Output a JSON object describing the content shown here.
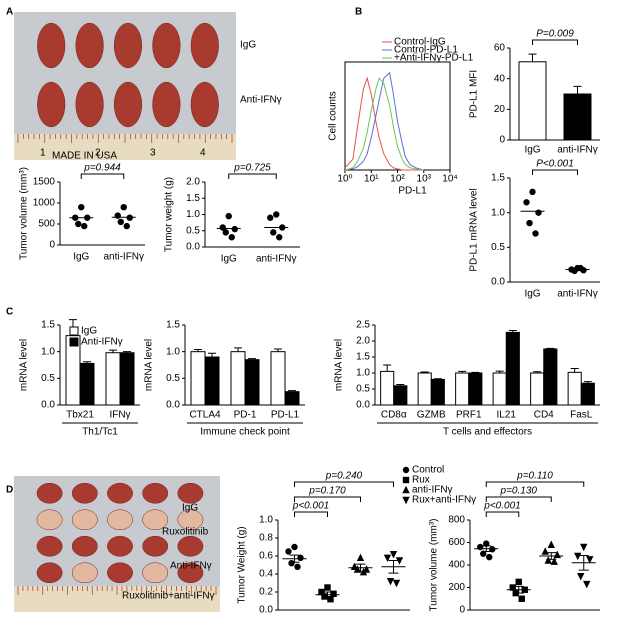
{
  "panel_labels": [
    "A",
    "B",
    "C",
    "D"
  ],
  "photo_a": {
    "labels": [
      "IgG",
      "Anti-IFNγ"
    ],
    "ruler": [
      "1",
      "2",
      "3",
      "4"
    ],
    "ruler_text": "MADE IN USA"
  },
  "photo_d": {
    "labels": [
      "IgG",
      "Ruxolitinib",
      "Anti-IFNγ",
      "Ruxolitinib+anti-IFNγ"
    ]
  },
  "chart_data": [
    {
      "type": "strip",
      "ylabel": "Tumor volume (mm³)",
      "categories": [
        "IgG",
        "anti-IFNγ"
      ],
      "series": [
        {
          "marker": "circle",
          "values": [
            900,
            650,
            650,
            500,
            450
          ],
          "mean": 650
        },
        {
          "marker": "circle",
          "values": [
            900,
            700,
            650,
            550,
            450
          ],
          "mean": 660
        }
      ],
      "ylim": [
        0,
        1500
      ],
      "yticks": [
        0,
        500,
        1000,
        1500
      ],
      "annotations": [
        {
          "text": "p=0.944",
          "to": 1
        }
      ]
    },
    {
      "type": "strip",
      "ylabel": "Tumor weight (g)",
      "categories": [
        "IgG",
        "anti-IFNγ"
      ],
      "series": [
        {
          "marker": "circle",
          "values": [
            0.95,
            0.6,
            0.55,
            0.45,
            0.3
          ],
          "mean": 0.57
        },
        {
          "marker": "circle",
          "values": [
            1.0,
            0.9,
            0.6,
            0.45,
            0.3
          ],
          "mean": 0.6
        }
      ],
      "ylim": [
        0,
        2
      ],
      "yticks": [
        {
          "value": 0,
          "label": "0.0"
        },
        0.5,
        {
          "value": 1,
          "label": "1.0"
        },
        1.5,
        {
          "value": 2,
          "label": "2.0"
        }
      ],
      "annotations": [
        {
          "text": "p=0.725",
          "to": 1
        }
      ]
    },
    {
      "type": "line",
      "xlabel": "PD-L1",
      "ylabel": "Cell counts",
      "log_x": true,
      "x": [
        1,
        2,
        3,
        5,
        7,
        10,
        15,
        20,
        30,
        50,
        70,
        100,
        150,
        200,
        300,
        500,
        1000
      ],
      "xlim": [
        1,
        10000
      ],
      "xticks": [
        {
          "value": 1,
          "label": "10⁰"
        },
        {
          "value": 10,
          "label": "10¹"
        },
        {
          "value": 100,
          "label": "10²"
        },
        {
          "value": 1000,
          "label": "10³"
        },
        {
          "value": 10000,
          "label": "10⁴"
        }
      ],
      "ylim": [
        0,
        100
      ],
      "legend": "top-right",
      "series": [
        {
          "name": "Control-IgG",
          "color": "#e8504a",
          "values": [
            2,
            10,
            40,
            75,
            85,
            70,
            45,
            30,
            15,
            5,
            2,
            1,
            0,
            0,
            0,
            0,
            0
          ]
        },
        {
          "name": "Control-PD-L1",
          "color": "#5a6fd6",
          "values": [
            0,
            1,
            3,
            8,
            15,
            30,
            50,
            65,
            85,
            90,
            70,
            45,
            25,
            12,
            5,
            2,
            0
          ]
        },
        {
          "name": "+Anti-IFNγ-PD-L1",
          "color": "#6cc25a",
          "values": [
            0,
            2,
            8,
            20,
            35,
            55,
            75,
            85,
            80,
            60,
            40,
            22,
            10,
            5,
            2,
            1,
            0
          ]
        }
      ]
    },
    {
      "type": "bar",
      "ylabel": "PD-L1 MFI",
      "categories": [
        "IgG",
        "anti-IFNγ"
      ],
      "values": [
        51,
        30
      ],
      "errors": [
        5,
        5
      ],
      "colors": [
        "#ffffff",
        "#000000"
      ],
      "ylim": [
        0,
        60
      ],
      "yticks": [
        0,
        20,
        40,
        60
      ],
      "annotations": [
        {
          "text": "P=0.009",
          "to": 1
        }
      ]
    },
    {
      "type": "strip",
      "ylabel": "PD-L1 mRNA level",
      "categories": [
        "IgG",
        "anti-IFNγ"
      ],
      "series": [
        {
          "marker": "circle",
          "values": [
            1.3,
            1.15,
            1.0,
            0.85,
            0.7
          ],
          "mean": 1.02
        },
        {
          "marker": "circle",
          "values": [
            0.2,
            0.18,
            0.17,
            0.16,
            0.2
          ],
          "mean": 0.18
        }
      ],
      "ylim": [
        0,
        1.5
      ],
      "yticks": [
        {
          "value": 0,
          "label": "0.0"
        },
        0.5,
        {
          "value": 1,
          "label": "1.0"
        },
        1.5
      ],
      "annotations": [
        {
          "text": "P<0.001",
          "to": 1
        }
      ]
    },
    {
      "type": "bar",
      "ylabel": "mRNA level",
      "categories": [
        "Tbx21",
        "IFNγ"
      ],
      "group_label": "Th1/Tc1",
      "legend": "top-left",
      "series": [
        {
          "name": "IgG",
          "color": "#ffffff",
          "values": [
            1.3,
            0.98
          ],
          "errors": [
            0.3,
            0.05
          ]
        },
        {
          "name": "Anti-IFNγ",
          "color": "#000000",
          "values": [
            0.78,
            0.98
          ],
          "errors": [
            0.03,
            0.02
          ]
        }
      ],
      "ylim": [
        0,
        1.5
      ],
      "yticks": [
        {
          "value": 0,
          "label": "0.0"
        },
        0.5,
        {
          "value": 1,
          "label": "1.0"
        },
        1.5
      ]
    },
    {
      "type": "bar",
      "ylabel": "mRNA level",
      "categories": [
        "CTLA4",
        "PD-1",
        "PD-L1"
      ],
      "group_label": "Immune check point",
      "series": [
        {
          "color": "#ffffff",
          "values": [
            1.0,
            1.0,
            1.0
          ],
          "errors": [
            0.04,
            0.07,
            0.05
          ]
        },
        {
          "color": "#000000",
          "values": [
            0.9,
            0.85,
            0.25
          ],
          "errors": [
            0.07,
            0.02,
            0.02
          ]
        }
      ],
      "ylim": [
        0,
        1.5
      ],
      "yticks": [
        {
          "value": 0,
          "label": "0.0"
        },
        0.5,
        {
          "value": 1,
          "label": "1.0"
        },
        1.5
      ]
    },
    {
      "type": "bar",
      "ylabel": "mRNA level",
      "categories": [
        "CD8α",
        "GZMB",
        "PRF1",
        "IL21",
        "CD4",
        "FasL"
      ],
      "group_label": "T cells and effectors",
      "series": [
        {
          "color": "#ffffff",
          "values": [
            1.05,
            1.0,
            1.0,
            1.0,
            1.0,
            1.02
          ],
          "errors": [
            0.2,
            0.03,
            0.05,
            0.06,
            0.04,
            0.12
          ]
        },
        {
          "color": "#000000",
          "values": [
            0.6,
            0.8,
            1.0,
            2.27,
            1.75,
            0.68
          ],
          "errors": [
            0.04,
            0.02,
            0.02,
            0.06,
            0.02,
            0.05
          ]
        }
      ],
      "ylim": [
        0,
        2.5
      ],
      "yticks": [
        {
          "value": 0,
          "label": "0.0"
        },
        0.5,
        {
          "value": 1,
          "label": "1.0"
        },
        1.5,
        {
          "value": 2,
          "label": "2.0"
        },
        2.5
      ]
    },
    {
      "type": "strip",
      "ylabel": "Tumor Weight (g)",
      "legend": "top-right",
      "series": [
        {
          "name": "Control",
          "marker": "circle",
          "values": [
            0.7,
            0.65,
            0.58,
            0.52,
            0.48
          ],
          "mean": 0.57,
          "error": 0.04
        },
        {
          "name": "Rux",
          "marker": "square",
          "values": [
            0.25,
            0.2,
            0.18,
            0.15,
            0.12
          ],
          "mean": 0.17,
          "error": 0.03
        },
        {
          "name": "anti-IFNγ",
          "marker": "triangle",
          "values": [
            0.58,
            0.48,
            0.45,
            0.45,
            0.42
          ],
          "mean": 0.47,
          "error": 0.04
        },
        {
          "name": "Rux+anti-IFNγ",
          "marker": "down-triangle",
          "values": [
            0.62,
            0.58,
            0.55,
            0.32,
            0.3
          ],
          "mean": 0.48,
          "error": 0.07
        }
      ],
      "ylim": [
        0,
        1
      ],
      "yticks": [
        {
          "value": 0,
          "label": "0.0"
        },
        0.2,
        0.4,
        0.6,
        0.8,
        {
          "value": 1,
          "label": "1.0"
        }
      ],
      "annotations": [
        {
          "text": "p=0.240",
          "to": 3
        },
        {
          "text": "p=0.170",
          "to": 2
        },
        {
          "text": "p<0.001",
          "to": 1
        }
      ]
    },
    {
      "type": "strip",
      "ylabel": "Tumor volume (mm³)",
      "series": [
        {
          "marker": "circle",
          "values": [
            590,
            560,
            540,
            500,
            470
          ],
          "mean": 545,
          "error": 25
        },
        {
          "marker": "square",
          "values": [
            250,
            200,
            180,
            150,
            100
          ],
          "mean": 180,
          "error": 30
        },
        {
          "marker": "triangle",
          "values": [
            580,
            520,
            490,
            440,
            430
          ],
          "mean": 480,
          "error": 30
        },
        {
          "marker": "down-triangle",
          "values": [
            560,
            480,
            450,
            300,
            230
          ],
          "mean": 420,
          "error": 65
        }
      ],
      "ylim": [
        0,
        800
      ],
      "yticks": [
        0,
        200,
        400,
        600,
        800
      ],
      "annotations": [
        {
          "text": "p=0.110",
          "to": 3
        },
        {
          "text": "p=0.130",
          "to": 2
        },
        {
          "text": "p<0.001",
          "to": 1
        }
      ]
    }
  ]
}
